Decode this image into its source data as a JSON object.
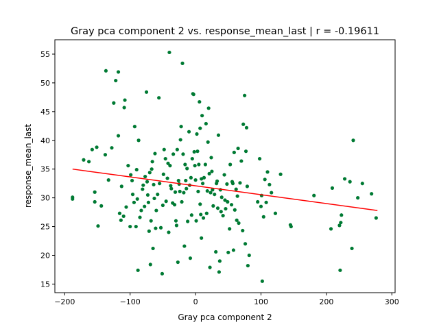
{
  "chart_data": {
    "type": "scatter",
    "title": "Gray pca component 2 vs. response_mean_last | r = -0.19611",
    "xlabel": "Gray pca component 2",
    "ylabel": "response_mean_last",
    "xlim": [
      -215,
      305
    ],
    "ylim": [
      13.5,
      57.5
    ],
    "xticks": [
      -200,
      -100,
      0,
      100,
      200,
      300
    ],
    "xtick_labels": [
      "−200",
      "−100",
      "0",
      "100",
      "200",
      "300"
    ],
    "yticks": [
      15,
      20,
      25,
      30,
      35,
      40,
      45,
      50,
      55
    ],
    "ytick_labels": [
      "15",
      "20",
      "25",
      "30",
      "35",
      "40",
      "45",
      "50",
      "55"
    ],
    "grid": false,
    "legend": "none",
    "point_color": "#007a33",
    "trend_color": "#ff0000",
    "trend_line": {
      "x": [
        -188,
        278
      ],
      "y": [
        35.0,
        27.8
      ]
    },
    "points": [
      [
        -188,
        29.8
      ],
      [
        -188,
        30.1
      ],
      [
        -171,
        36.6
      ],
      [
        -163,
        36.3
      ],
      [
        -158,
        38.4
      ],
      [
        -154,
        31.0
      ],
      [
        -154,
        29.3
      ],
      [
        -151,
        38.8
      ],
      [
        -149,
        25.1
      ],
      [
        -144,
        28.6
      ],
      [
        -138,
        37.5
      ],
      [
        -137,
        52.1
      ],
      [
        -133,
        33.1
      ],
      [
        -128,
        38.7
      ],
      [
        -125,
        46.5
      ],
      [
        -122,
        50.4
      ],
      [
        -118,
        51.9
      ],
      [
        -118,
        40.8
      ],
      [
        -116,
        27.3
      ],
      [
        -114,
        26.1
      ],
      [
        -113,
        32.0
      ],
      [
        -110,
        26.8
      ],
      [
        -109,
        45.7
      ],
      [
        -108,
        47.0
      ],
      [
        -106,
        28.4
      ],
      [
        -103,
        35.6
      ],
      [
        -100,
        25.0
      ],
      [
        -99,
        34.0
      ],
      [
        -97,
        33.0
      ],
      [
        -96,
        30.6
      ],
      [
        -94,
        29.2
      ],
      [
        -93,
        42.4
      ],
      [
        -91,
        25.0
      ],
      [
        -90,
        34.9
      ],
      [
        -89,
        29.8
      ],
      [
        -88,
        17.4
      ],
      [
        -87,
        40.0
      ],
      [
        -85,
        26.6
      ],
      [
        -83,
        27.8
      ],
      [
        -81,
        31.5
      ],
      [
        -80,
        32.2
      ],
      [
        -78,
        28.5
      ],
      [
        -77,
        33.7
      ],
      [
        -75,
        48.4
      ],
      [
        -74,
        32.8
      ],
      [
        -73,
        30.5
      ],
      [
        -72,
        29.2
      ],
      [
        -71,
        24.2
      ],
      [
        -70,
        34.4
      ],
      [
        -69,
        18.4
      ],
      [
        -68,
        26.0
      ],
      [
        -67,
        35.0
      ],
      [
        -66,
        36.3
      ],
      [
        -65,
        21.2
      ],
      [
        -64,
        32.3
      ],
      [
        -63,
        29.9
      ],
      [
        -62,
        37.7
      ],
      [
        -61,
        24.7
      ],
      [
        -60,
        27.8
      ],
      [
        -58,
        30.6
      ],
      [
        -56,
        47.4
      ],
      [
        -55,
        32.5
      ],
      [
        -53,
        24.8
      ],
      [
        -51,
        16.8
      ],
      [
        -50,
        28.7
      ],
      [
        -49,
        34.1
      ],
      [
        -48,
        38.4
      ],
      [
        -46,
        36.8
      ],
      [
        -45,
        29.4
      ],
      [
        -43,
        33.4
      ],
      [
        -42,
        36.0
      ],
      [
        -41,
        24.0
      ],
      [
        -40,
        55.3
      ],
      [
        -39,
        35.6
      ],
      [
        -38,
        32.1
      ],
      [
        -37,
        31.6
      ],
      [
        -35,
        29.1
      ],
      [
        -34,
        37.6
      ],
      [
        -32,
        28.8
      ],
      [
        -31,
        31.0
      ],
      [
        -30,
        26.0
      ],
      [
        -29,
        25.2
      ],
      [
        -28,
        38.4
      ],
      [
        -27,
        18.8
      ],
      [
        -26,
        33.0
      ],
      [
        -25,
        32.4
      ],
      [
        -24,
        31.1
      ],
      [
        -23,
        40.1
      ],
      [
        -22,
        42.4
      ],
      [
        -21,
        29.3
      ],
      [
        -20,
        53.4
      ],
      [
        -19,
        37.6
      ],
      [
        -18,
        30.9
      ],
      [
        -17,
        21.6
      ],
      [
        -16,
        35.8
      ],
      [
        -15,
        33.0
      ],
      [
        -14,
        31.6
      ],
      [
        -13,
        35.1
      ],
      [
        -12,
        25.9
      ],
      [
        -10,
        41.5
      ],
      [
        -9,
        32.2
      ],
      [
        -8,
        19.5
      ],
      [
        -7,
        33.5
      ],
      [
        -6,
        27.0
      ],
      [
        -5,
        36.8
      ],
      [
        -4,
        48.1
      ],
      [
        -3,
        48.0
      ],
      [
        -2,
        38.0
      ],
      [
        -1,
        35.6
      ],
      [
        0,
        33.1
      ],
      [
        1,
        26.0
      ],
      [
        2,
        41.1
      ],
      [
        3,
        38.1
      ],
      [
        4,
        31.1
      ],
      [
        5,
        35.8
      ],
      [
        6,
        46.7
      ],
      [
        7,
        28.9
      ],
      [
        7,
        42.1
      ],
      [
        8,
        27.1
      ],
      [
        9,
        33.3
      ],
      [
        9,
        23.0
      ],
      [
        10,
        44.3
      ],
      [
        11,
        32.5
      ],
      [
        12,
        26.5
      ],
      [
        13,
        33.5
      ],
      [
        15,
        35.8
      ],
      [
        16,
        42.9
      ],
      [
        17,
        27.3
      ],
      [
        18,
        31.2
      ],
      [
        19,
        39.7
      ],
      [
        20,
        45.6
      ],
      [
        21,
        34.2
      ],
      [
        22,
        17.9
      ],
      [
        23,
        30.9
      ],
      [
        24,
        37.0
      ],
      [
        25,
        34.6
      ],
      [
        26,
        31.4
      ],
      [
        27,
        28.6
      ],
      [
        29,
        30.6
      ],
      [
        31,
        20.6
      ],
      [
        32,
        32.5
      ],
      [
        33,
        32.9
      ],
      [
        34,
        28.2
      ],
      [
        35,
        40.9
      ],
      [
        36,
        17.1
      ],
      [
        37,
        19.0
      ],
      [
        38,
        31.4
      ],
      [
        39,
        27.6
      ],
      [
        40,
        30.1
      ],
      [
        42,
        26.9
      ],
      [
        44,
        34.0
      ],
      [
        45,
        29.6
      ],
      [
        46,
        28.1
      ],
      [
        48,
        32.4
      ],
      [
        49,
        29.3
      ],
      [
        50,
        20.5
      ],
      [
        52,
        24.6
      ],
      [
        53,
        35.8
      ],
      [
        55,
        28.8
      ],
      [
        56,
        32.8
      ],
      [
        57,
        32.5
      ],
      [
        58,
        20.9
      ],
      [
        59,
        37.9
      ],
      [
        60,
        27.9
      ],
      [
        62,
        31.5
      ],
      [
        63,
        26.1
      ],
      [
        64,
        30.3
      ],
      [
        65,
        38.6
      ],
      [
        66,
        25.6
      ],
      [
        68,
        32.6
      ],
      [
        70,
        36.4
      ],
      [
        72,
        24.3
      ],
      [
        73,
        42.8
      ],
      [
        75,
        47.8
      ],
      [
        76,
        22.0
      ],
      [
        77,
        38.1
      ],
      [
        78,
        42.2
      ],
      [
        79,
        32.0
      ],
      [
        80,
        18.2
      ],
      [
        82,
        20.0
      ],
      [
        95,
        29.3
      ],
      [
        98,
        36.8
      ],
      [
        100,
        28.5
      ],
      [
        101,
        30.4
      ],
      [
        102,
        15.5
      ],
      [
        104,
        26.7
      ],
      [
        106,
        33.2
      ],
      [
        108,
        29.2
      ],
      [
        110,
        34.5
      ],
      [
        113,
        32.3
      ],
      [
        116,
        30.9
      ],
      [
        122,
        27.3
      ],
      [
        130,
        34.1
      ],
      [
        145,
        25.3
      ],
      [
        146,
        25.0
      ],
      [
        181,
        30.4
      ],
      [
        207,
        24.6
      ],
      [
        209,
        31.7
      ],
      [
        220,
        25.2
      ],
      [
        221,
        17.4
      ],
      [
        222,
        25.7
      ],
      [
        223,
        27.0
      ],
      [
        228,
        33.3
      ],
      [
        236,
        32.8
      ],
      [
        239,
        21.2
      ],
      [
        241,
        40.0
      ],
      [
        248,
        30.0
      ],
      [
        255,
        32.5
      ],
      [
        269,
        30.7
      ],
      [
        276,
        26.5
      ]
    ]
  }
}
